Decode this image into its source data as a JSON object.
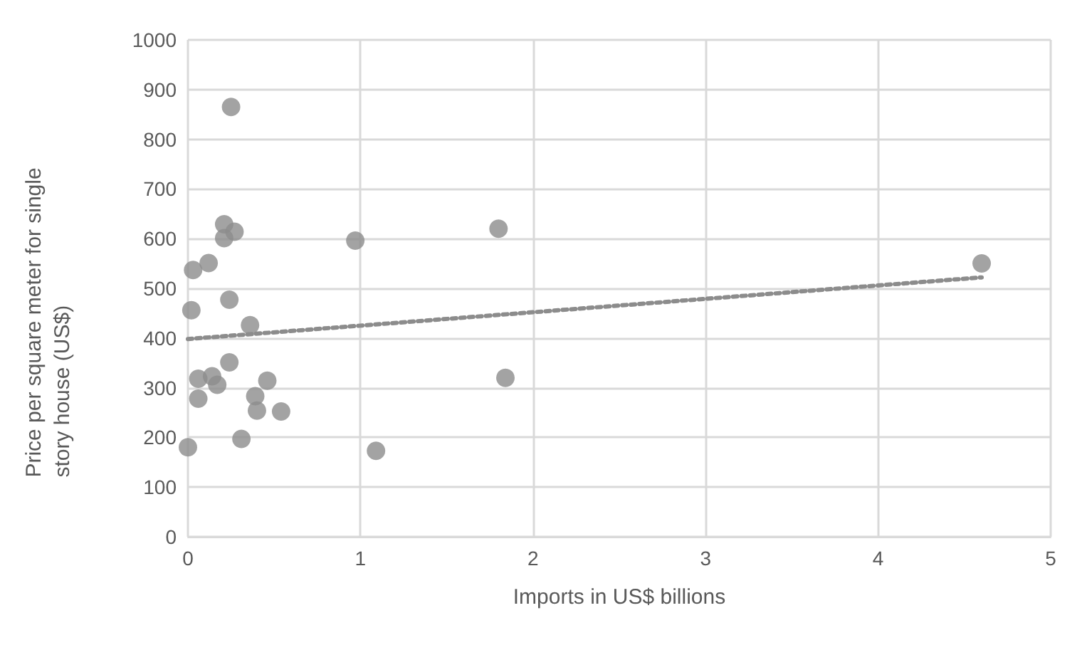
{
  "chart_data": {
    "type": "scatter",
    "xlabel": "Imports in US$ billions",
    "ylabel": "Price per square meter for single story house (US$)",
    "xlim": [
      0,
      5
    ],
    "xticks": [
      0,
      1,
      2,
      3,
      4,
      5
    ],
    "ylim": [
      0,
      1000
    ],
    "yticks": [
      0,
      100,
      200,
      300,
      400,
      500,
      600,
      700,
      800,
      900,
      1000
    ],
    "grid": true,
    "marker": "circle",
    "series": [
      {
        "color": "#8c8c8c",
        "x": [
          0.0,
          0.03,
          0.02,
          0.06,
          0.06,
          0.12,
          0.14,
          0.17,
          0.21,
          0.21,
          0.27,
          0.24,
          0.24,
          0.25,
          0.36,
          0.31,
          0.39,
          0.4,
          0.46,
          0.54,
          0.97,
          1.09,
          1.8,
          1.84,
          4.6
        ],
        "values": [
          180,
          537,
          456,
          318,
          278,
          551,
          323,
          306,
          629,
          601,
          614,
          477,
          351,
          865,
          426,
          197,
          283,
          254,
          314,
          252,
          596,
          173,
          620,
          320,
          550
        ]
      },
      {
        "type": "line",
        "color": "#8c8c8c",
        "line_style": "dotted",
        "marker": "none",
        "x": [
          0,
          4.6
        ],
        "values": [
          398,
          522
        ]
      }
    ]
  }
}
